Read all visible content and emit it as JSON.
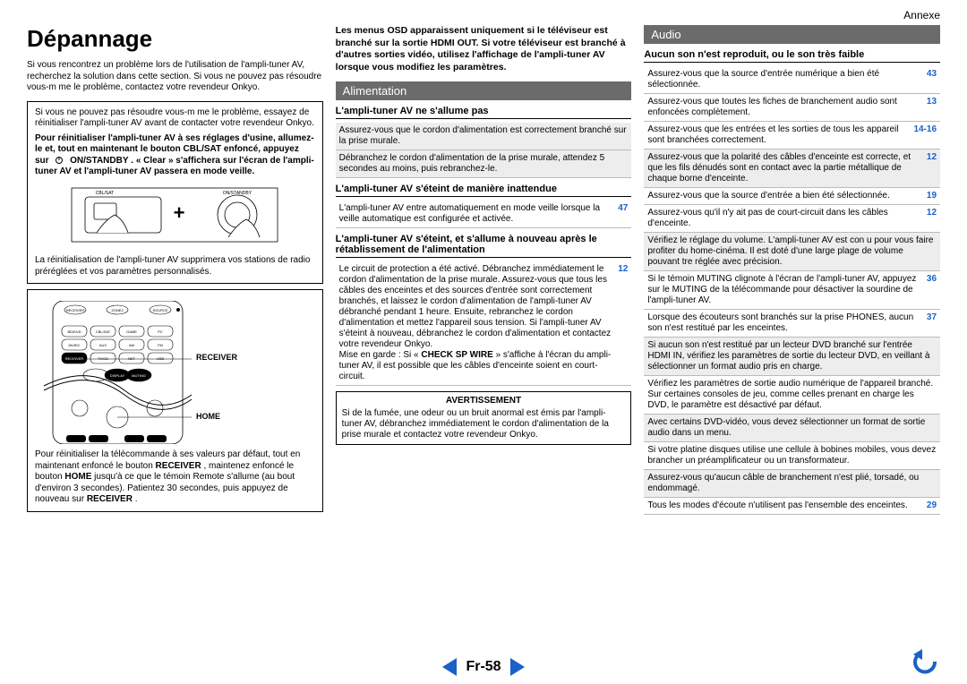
{
  "annexe": "Annexe",
  "title": "Dépannage",
  "intro": "Si vous rencontrez un problème lors de l'utilisation de l'ampli-tuner AV, recherchez la solution dans cette section. Si vous ne pouvez pas résoudre vous-m me le problème, contactez votre revendeur Onkyo.",
  "box1_p1": "Si vous ne pouvez pas résoudre vous-m me le problème, essayez de réinitialiser l'ampli-tuner AV avant de contacter votre revendeur Onkyo.",
  "box1_p2a": "Pour réinitialiser l'ampli-tuner AV à ses réglages d'usine, allumez-le et, tout en maintenant le bouton CBL/SAT enfoncé, appuyez sur ",
  "box1_p2b": "ON/STANDBY",
  "box1_p2c": ". « Clear » s'affichera sur l'écran de l'ampli-tuner AV et l'ampli-tuner AV passera en mode veille.",
  "box1_p3": "La réinitialisation de l'ampli-tuner AV supprimera vos stations de radio préréglées et vos paramètres personnalisés.",
  "box2_p1a": "Pour réinitialiser la télécommande à ses valeurs par défaut, tout en maintenant enfoncé le bouton ",
  "box2_p1b": "RECEIVER",
  "box2_p1c": ", maintenez enfoncé le bouton ",
  "box2_p1d": "HOME",
  "box2_p1e": " jusqu'à ce que le témoin Remote s'allume (au bout d'environ 3 secondes). Patientez 30 secondes, puis appuyez de nouveau sur ",
  "box2_p1f": "RECEIVER",
  "box2_p1g": ".",
  "box2_label_receiver": "RECEIVER",
  "box2_label_home": "HOME",
  "osd": "Les menus OSD apparaissent uniquement si le téléviseur est branché sur la sortie HDMI OUT. Si votre téléviseur est branché à d'autres sorties vidéo, utilisez l'affichage de l'ampli-tuner AV lorsque vous modifiez les paramètres.",
  "sec_alim": "Alimentation",
  "sub_alim1": "L'ampli-tuner AV ne s'allume pas",
  "alim1_items": [
    {
      "t": "Assurez-vous que le cordon d'alimentation est correctement branché sur la prise murale.",
      "p": "",
      "g": true
    },
    {
      "t": "Débranchez le cordon d'alimentation de la prise murale, attendez 5 secondes au moins, puis rebranchez-le.",
      "p": "",
      "g": true
    }
  ],
  "sub_alim2": "L'ampli-tuner AV s'éteint de manière inattendue",
  "alim2_items": [
    {
      "t": "L'ampli-tuner AV entre automatiquement en mode veille lorsque la veille automatique est configurée et activée.",
      "p": "47",
      "g": false
    }
  ],
  "sub_alim3": "L'ampli-tuner AV s'éteint, et s'allume à nouveau après le rétablissement de l'alimentation",
  "alim3_text": "Le circuit de protection a été activé. Débranchez immédiatement le cordon d'alimentation de la prise murale. Assurez-vous que tous les câbles des enceintes et des sources d'entrée sont correctement branchés, et laissez le cordon d'alimentation de l'ampli-tuner AV débranché pendant 1 heure. Ensuite, rebranchez le cordon d'alimentation et mettez l'appareil sous tension. Si l'ampli-tuner AV s'éteint à nouveau, débranchez le cordon d'alimentation et contactez votre revendeur Onkyo.",
  "alim3_text2a": "Mise en garde : Si « ",
  "alim3_text2b": "CHECK SP WIRE",
  "alim3_text2c": " » s'affiche à l'écran du ampli-tuner AV, il est possible que les câbles d'enceinte soient en court-circuit.",
  "alim3_pg": "12",
  "warn_title": "AVERTISSEMENT",
  "warn_body": "Si  de  la  fumée,  une  odeur  ou  un  bruit  anormal  est  émis  par  l'ampli-tuner AV,  débranchez  immédiatement  le  cordon d'alimentation de la prise murale et contactez votre revendeur Onkyo.",
  "sec_audio": "Audio",
  "sub_audio1": "Aucun son n'est reproduit, ou le son très faible",
  "audio_items": [
    {
      "t": "Assurez-vous que la source d'entrée numérique a bien été sélectionnée.",
      "p": "43",
      "g": false
    },
    {
      "t": "Assurez-vous que toutes les fiches de branchement audio sont enfoncées complètement.",
      "p": "13",
      "g": false
    },
    {
      "t": "Assurez-vous que les entrées et les sorties de tous les appareil sont branchées correctement.",
      "p": "14-16",
      "g": false
    },
    {
      "t": "Assurez-vous que la polarité des câbles d'enceinte est correcte, et que les fils dénudés sont en contact avec la partie métallique de chaque borne d'enceinte.",
      "p": "12",
      "g": true
    },
    {
      "t": "Assurez-vous que la source d'entrée a bien été sélectionnée.",
      "p": "19",
      "g": false
    },
    {
      "t": "Assurez-vous qu'il n'y ait pas de court-circuit dans les câbles d'enceinte.",
      "p": "12",
      "g": false
    },
    {
      "t": "Vérifiez le réglage du volume. L'ampli-tuner AV est con u pour vous faire profiter du home-cinéma. Il est doté d'une large plage de volume pouvant tre réglée avec précision.",
      "p": "",
      "g": true
    },
    {
      "t": "Si le témoin MUTING clignote à l'écran de l'ampli-tuner AV, appuyez sur le MUTING de la télécommande pour désactiver la sourdine de l'ampli-tuner AV.",
      "p": "36",
      "g": false
    },
    {
      "t": "Lorsque des écouteurs sont branchés sur la prise PHONES, aucun son n'est restitué par les enceintes.",
      "p": "37",
      "g": false
    },
    {
      "t": "Si aucun son n'est restitué par un lecteur DVD branché sur l'entrée HDMI IN, vérifiez les paramètres de sortie du lecteur DVD, en veillant à sélectionner un format audio pris en charge.",
      "p": "",
      "g": true
    },
    {
      "t": "Vérifiez les paramètres de sortie audio numérique de l'appareil branché. Sur certaines consoles de jeu, comme celles prenant en charge les DVD, le paramètre est désactivé par défaut.",
      "p": "",
      "g": false
    },
    {
      "t": "Avec certains DVD-vidéo, vous devez sélectionner un format de sortie audio dans un menu.",
      "p": "",
      "g": true
    },
    {
      "t": "Si votre platine disques utilise une cellule à bobines mobiles, vous devez brancher un préamplificateur ou un transformateur.",
      "p": "",
      "g": false
    },
    {
      "t": "Assurez-vous qu'aucun câble de branchement n'est plié, torsadé, ou endommagé.",
      "p": "",
      "g": true
    },
    {
      "t": "Tous les modes d'écoute n'utilisent pas l'ensemble des enceintes.",
      "p": "29",
      "g": false
    }
  ],
  "pagenum": "Fr-58",
  "svg_buttons": {
    "cbl_sat": "CBL/SAT",
    "on_standby": "ON/STANDBY",
    "plus": "+"
  },
  "remote_buttons": [
    "RECEIVER",
    "ZONE2",
    "SOURCE",
    "BD/DVD",
    "CBL/SAT",
    "GAME",
    "PC",
    "MUSIC",
    "AUX",
    "AM",
    "FM",
    "RECEIVER",
    "TV/CD",
    "NET",
    "USB",
    "DISPLAY",
    "MUTING"
  ],
  "colors": {
    "header_bg": "#6b6b6b",
    "link": "#1a60c8",
    "gray_row": "#ededed"
  }
}
